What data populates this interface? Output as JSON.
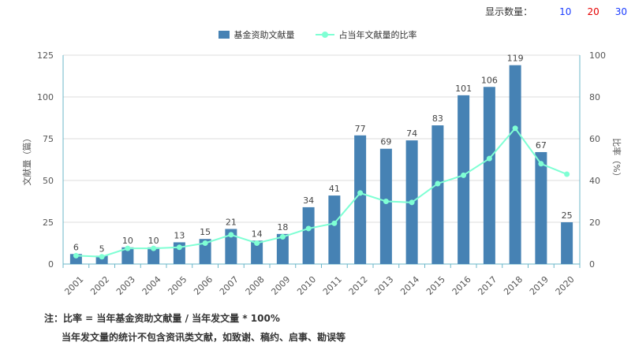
{
  "topbar": {
    "label": "显示数量：",
    "options": [
      {
        "text": "10",
        "color": "#1a3cff"
      },
      {
        "text": "20",
        "color": "#e60000"
      },
      {
        "text": "30",
        "color": "#1a3cff"
      }
    ]
  },
  "chart_data": {
    "type": "bar",
    "categories": [
      "2001",
      "2002",
      "2003",
      "2004",
      "2005",
      "2006",
      "2007",
      "2008",
      "2009",
      "2010",
      "2011",
      "2012",
      "2013",
      "2014",
      "2015",
      "2016",
      "2017",
      "2018",
      "2019",
      "2020"
    ],
    "series": [
      {
        "name": "基金资助文献量",
        "type": "bar",
        "color": "#4682B4",
        "values": [
          6,
          5,
          10,
          10,
          13,
          15,
          21,
          14,
          18,
          34,
          41,
          77,
          69,
          74,
          83,
          101,
          106,
          119,
          67,
          25
        ]
      },
      {
        "name": "占当年文献量的比率",
        "type": "line",
        "color": "#7FFFD4",
        "values": [
          4,
          3.5,
          7.5,
          7.5,
          8,
          10,
          14,
          10,
          13,
          17,
          19.5,
          34,
          30,
          29.5,
          38.5,
          42.5,
          50.5,
          65,
          48,
          43
        ]
      }
    ],
    "ylabel": "文献量（篇）",
    "y2label": "比率（%）",
    "ylim": [
      0,
      125
    ],
    "y2lim": [
      0,
      100
    ],
    "yticks": [
      0,
      25,
      50,
      75,
      100,
      125
    ],
    "y2ticks": [
      0,
      20,
      40,
      60,
      80,
      100
    ],
    "grid": true,
    "legend_position": "top-center"
  },
  "notes": {
    "line1": "注：比率 = 当年基金资助文献量 / 当年发文量 * 100%",
    "line2": "当年发文量的统计不包含资讯类文献，如致谢、稿约、启事、勘误等"
  }
}
